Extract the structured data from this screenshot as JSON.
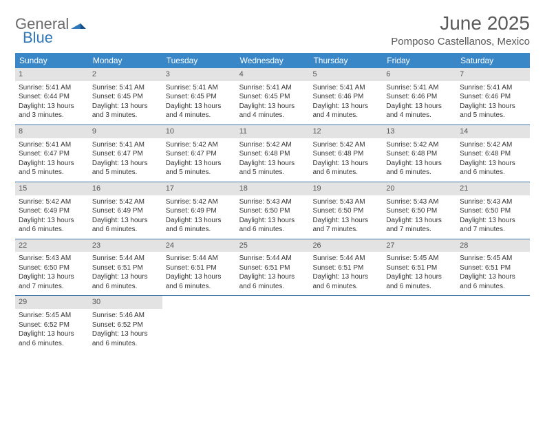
{
  "brand": {
    "word1": "General",
    "word2": "Blue"
  },
  "title": "June 2025",
  "location": "Pomposo Castellanos, Mexico",
  "day_headers": [
    "Sunday",
    "Monday",
    "Tuesday",
    "Wednesday",
    "Thursday",
    "Friday",
    "Saturday"
  ],
  "colors": {
    "header_bg": "#3a87c8",
    "header_text": "#ffffff",
    "row_divider": "#3a74a8",
    "daynum_bg": "#e3e3e3",
    "text": "#333333",
    "title_text": "#5a5a5a",
    "brand_gray": "#6b6b6b",
    "brand_blue": "#2f77b8"
  },
  "days": [
    {
      "n": "1",
      "sunrise": "Sunrise: 5:41 AM",
      "sunset": "Sunset: 6:44 PM",
      "daylight": "Daylight: 13 hours and 3 minutes."
    },
    {
      "n": "2",
      "sunrise": "Sunrise: 5:41 AM",
      "sunset": "Sunset: 6:45 PM",
      "daylight": "Daylight: 13 hours and 3 minutes."
    },
    {
      "n": "3",
      "sunrise": "Sunrise: 5:41 AM",
      "sunset": "Sunset: 6:45 PM",
      "daylight": "Daylight: 13 hours and 4 minutes."
    },
    {
      "n": "4",
      "sunrise": "Sunrise: 5:41 AM",
      "sunset": "Sunset: 6:45 PM",
      "daylight": "Daylight: 13 hours and 4 minutes."
    },
    {
      "n": "5",
      "sunrise": "Sunrise: 5:41 AM",
      "sunset": "Sunset: 6:46 PM",
      "daylight": "Daylight: 13 hours and 4 minutes."
    },
    {
      "n": "6",
      "sunrise": "Sunrise: 5:41 AM",
      "sunset": "Sunset: 6:46 PM",
      "daylight": "Daylight: 13 hours and 4 minutes."
    },
    {
      "n": "7",
      "sunrise": "Sunrise: 5:41 AM",
      "sunset": "Sunset: 6:46 PM",
      "daylight": "Daylight: 13 hours and 5 minutes."
    },
    {
      "n": "8",
      "sunrise": "Sunrise: 5:41 AM",
      "sunset": "Sunset: 6:47 PM",
      "daylight": "Daylight: 13 hours and 5 minutes."
    },
    {
      "n": "9",
      "sunrise": "Sunrise: 5:41 AM",
      "sunset": "Sunset: 6:47 PM",
      "daylight": "Daylight: 13 hours and 5 minutes."
    },
    {
      "n": "10",
      "sunrise": "Sunrise: 5:42 AM",
      "sunset": "Sunset: 6:47 PM",
      "daylight": "Daylight: 13 hours and 5 minutes."
    },
    {
      "n": "11",
      "sunrise": "Sunrise: 5:42 AM",
      "sunset": "Sunset: 6:48 PM",
      "daylight": "Daylight: 13 hours and 5 minutes."
    },
    {
      "n": "12",
      "sunrise": "Sunrise: 5:42 AM",
      "sunset": "Sunset: 6:48 PM",
      "daylight": "Daylight: 13 hours and 6 minutes."
    },
    {
      "n": "13",
      "sunrise": "Sunrise: 5:42 AM",
      "sunset": "Sunset: 6:48 PM",
      "daylight": "Daylight: 13 hours and 6 minutes."
    },
    {
      "n": "14",
      "sunrise": "Sunrise: 5:42 AM",
      "sunset": "Sunset: 6:48 PM",
      "daylight": "Daylight: 13 hours and 6 minutes."
    },
    {
      "n": "15",
      "sunrise": "Sunrise: 5:42 AM",
      "sunset": "Sunset: 6:49 PM",
      "daylight": "Daylight: 13 hours and 6 minutes."
    },
    {
      "n": "16",
      "sunrise": "Sunrise: 5:42 AM",
      "sunset": "Sunset: 6:49 PM",
      "daylight": "Daylight: 13 hours and 6 minutes."
    },
    {
      "n": "17",
      "sunrise": "Sunrise: 5:42 AM",
      "sunset": "Sunset: 6:49 PM",
      "daylight": "Daylight: 13 hours and 6 minutes."
    },
    {
      "n": "18",
      "sunrise": "Sunrise: 5:43 AM",
      "sunset": "Sunset: 6:50 PM",
      "daylight": "Daylight: 13 hours and 6 minutes."
    },
    {
      "n": "19",
      "sunrise": "Sunrise: 5:43 AM",
      "sunset": "Sunset: 6:50 PM",
      "daylight": "Daylight: 13 hours and 7 minutes."
    },
    {
      "n": "20",
      "sunrise": "Sunrise: 5:43 AM",
      "sunset": "Sunset: 6:50 PM",
      "daylight": "Daylight: 13 hours and 7 minutes."
    },
    {
      "n": "21",
      "sunrise": "Sunrise: 5:43 AM",
      "sunset": "Sunset: 6:50 PM",
      "daylight": "Daylight: 13 hours and 7 minutes."
    },
    {
      "n": "22",
      "sunrise": "Sunrise: 5:43 AM",
      "sunset": "Sunset: 6:50 PM",
      "daylight": "Daylight: 13 hours and 7 minutes."
    },
    {
      "n": "23",
      "sunrise": "Sunrise: 5:44 AM",
      "sunset": "Sunset: 6:51 PM",
      "daylight": "Daylight: 13 hours and 6 minutes."
    },
    {
      "n": "24",
      "sunrise": "Sunrise: 5:44 AM",
      "sunset": "Sunset: 6:51 PM",
      "daylight": "Daylight: 13 hours and 6 minutes."
    },
    {
      "n": "25",
      "sunrise": "Sunrise: 5:44 AM",
      "sunset": "Sunset: 6:51 PM",
      "daylight": "Daylight: 13 hours and 6 minutes."
    },
    {
      "n": "26",
      "sunrise": "Sunrise: 5:44 AM",
      "sunset": "Sunset: 6:51 PM",
      "daylight": "Daylight: 13 hours and 6 minutes."
    },
    {
      "n": "27",
      "sunrise": "Sunrise: 5:45 AM",
      "sunset": "Sunset: 6:51 PM",
      "daylight": "Daylight: 13 hours and 6 minutes."
    },
    {
      "n": "28",
      "sunrise": "Sunrise: 5:45 AM",
      "sunset": "Sunset: 6:51 PM",
      "daylight": "Daylight: 13 hours and 6 minutes."
    },
    {
      "n": "29",
      "sunrise": "Sunrise: 5:45 AM",
      "sunset": "Sunset: 6:52 PM",
      "daylight": "Daylight: 13 hours and 6 minutes."
    },
    {
      "n": "30",
      "sunrise": "Sunrise: 5:46 AM",
      "sunset": "Sunset: 6:52 PM",
      "daylight": "Daylight: 13 hours and 6 minutes."
    }
  ]
}
